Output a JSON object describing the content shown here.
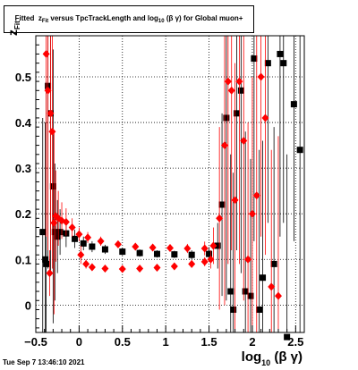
{
  "title": {
    "prefix": "Fitted",
    "z": "z",
    "z_sub": "Fit",
    "middle": "versus TpcTrackLength and log",
    "log_sub": "10",
    "beta_gamma": "(β γ)",
    "suffix": "for Global muon+"
  },
  "timestamp": "Tue Sep  7 13:46:10 2021",
  "axis": {
    "xlabel_main": "log",
    "xlabel_sub": "10",
    "xlabel_tail": "(β γ)",
    "ylabel_main": "z",
    "ylabel_sub": "Fit"
  },
  "colors": {
    "series_black": "#000000",
    "series_red": "#ff0000",
    "grid": "#000000"
  },
  "chart_data": {
    "type": "scatter",
    "xlim": [
      -0.5,
      2.6
    ],
    "ylim": [
      -0.06,
      0.59
    ],
    "xticks": [
      -0.5,
      0,
      0.5,
      1,
      1.5,
      2,
      2.5
    ],
    "xtick_labels": [
      "−0.5",
      "0",
      "0.5",
      "1",
      "1.5",
      "2",
      "2.5"
    ],
    "yticks": [
      0,
      0.1,
      0.2,
      0.3,
      0.4,
      0.5
    ],
    "ytick_labels": [
      "0",
      "0.1",
      "0.2",
      "0.3",
      "0.4",
      "0.5"
    ],
    "grid": true,
    "series": [
      {
        "color": "#000000",
        "points": [
          {
            "x": -0.42,
            "y": 0.16,
            "err": 0.25
          },
          {
            "x": -0.39,
            "y": 0.1,
            "err": 0.3
          },
          {
            "x": -0.38,
            "y": 0.09,
            "err": 0.4
          },
          {
            "x": -0.36,
            "y": 0.48,
            "err": 0.4
          },
          {
            "x": -0.33,
            "y": 0.42,
            "err": 0.35
          },
          {
            "x": -0.3,
            "y": 0.26,
            "err": 0.3
          },
          {
            "x": -0.28,
            "y": 0.16,
            "err": 0.15
          },
          {
            "x": -0.25,
            "y": 0.15,
            "err": 0.08
          },
          {
            "x": -0.22,
            "y": 0.16,
            "err": 0.05
          },
          {
            "x": -0.15,
            "y": 0.157,
            "err": 0.03
          },
          {
            "x": -0.05,
            "y": 0.145,
            "err": 0.02
          },
          {
            "x": 0.05,
            "y": 0.135,
            "err": 0.015
          },
          {
            "x": 0.15,
            "y": 0.128,
            "err": 0.012
          },
          {
            "x": 0.3,
            "y": 0.122,
            "err": 0.01
          },
          {
            "x": 0.5,
            "y": 0.117,
            "err": 0.008
          },
          {
            "x": 0.7,
            "y": 0.114,
            "err": 0.008
          },
          {
            "x": 0.9,
            "y": 0.112,
            "err": 0.008
          },
          {
            "x": 1.1,
            "y": 0.111,
            "err": 0.008
          },
          {
            "x": 1.3,
            "y": 0.11,
            "err": 0.01
          },
          {
            "x": 1.5,
            "y": 0.112,
            "err": 0.015
          },
          {
            "x": 1.6,
            "y": 0.13,
            "err": 0.05
          },
          {
            "x": 1.65,
            "y": 0.22,
            "err": 0.2
          },
          {
            "x": 1.7,
            "y": 0.41,
            "err": 0.4
          },
          {
            "x": 1.75,
            "y": 0.03,
            "err": 0.3
          },
          {
            "x": 1.78,
            "y": -0.01,
            "err": 0.3
          },
          {
            "x": 1.82,
            "y": 0.42,
            "err": 0.3
          },
          {
            "x": 1.87,
            "y": 0.47,
            "err": 0.4
          },
          {
            "x": 1.92,
            "y": 0.03,
            "err": 0.35
          },
          {
            "x": 1.98,
            "y": 0.02,
            "err": 0.3
          },
          {
            "x": 2.02,
            "y": 0.54,
            "err": 0.4
          },
          {
            "x": 2.08,
            "y": -0.01,
            "err": 0.35
          },
          {
            "x": 2.12,
            "y": 0.06,
            "err": 0.3
          },
          {
            "x": 2.18,
            "y": 0.53,
            "err": 0.35
          },
          {
            "x": 2.25,
            "y": 0.09,
            "err": 0.3
          },
          {
            "x": 2.32,
            "y": 0.55,
            "err": 0.4
          },
          {
            "x": 2.36,
            "y": 0.53,
            "err": 0.35
          },
          {
            "x": 2.4,
            "y": -0.07,
            "err": 0.4
          },
          {
            "x": 2.48,
            "y": 0.44,
            "err": 0.3
          },
          {
            "x": 2.55,
            "y": 0.34,
            "err": 0.4
          }
        ]
      },
      {
        "color": "#ff0000",
        "points": [
          {
            "x": -0.38,
            "y": 0.55,
            "err": 0.4
          },
          {
            "x": -0.36,
            "y": 0.47,
            "err": 0.35
          },
          {
            "x": -0.33,
            "y": 0.42,
            "err": 0.3
          },
          {
            "x": -0.31,
            "y": 0.38,
            "err": 0.3
          },
          {
            "x": -0.29,
            "y": 0.18,
            "err": 0.2
          },
          {
            "x": -0.27,
            "y": 0.195,
            "err": 0.1
          },
          {
            "x": -0.24,
            "y": 0.19,
            "err": 0.06
          },
          {
            "x": -0.2,
            "y": 0.185,
            "err": 0.04
          },
          {
            "x": -0.15,
            "y": 0.182,
            "err": 0.03
          },
          {
            "x": -0.08,
            "y": 0.17,
            "err": 0.02
          },
          {
            "x": 0.0,
            "y": 0.155,
            "err": 0.015
          },
          {
            "x": 0.1,
            "y": 0.148,
            "err": 0.012
          },
          {
            "x": 0.25,
            "y": 0.14,
            "err": 0.01
          },
          {
            "x": 0.45,
            "y": 0.133,
            "err": 0.008
          },
          {
            "x": 0.65,
            "y": 0.128,
            "err": 0.008
          },
          {
            "x": 0.85,
            "y": 0.126,
            "err": 0.008
          },
          {
            "x": 1.05,
            "y": 0.125,
            "err": 0.008
          },
          {
            "x": 1.25,
            "y": 0.124,
            "err": 0.01
          },
          {
            "x": 1.45,
            "y": 0.124,
            "err": 0.015
          },
          {
            "x": 1.55,
            "y": 0.13,
            "err": 0.04
          },
          {
            "x": 1.62,
            "y": 0.19,
            "err": 0.2
          },
          {
            "x": 1.68,
            "y": 0.35,
            "err": 0.35
          },
          {
            "x": 1.72,
            "y": 0.49,
            "err": 0.4
          },
          {
            "x": 1.76,
            "y": 0.47,
            "err": 0.35
          },
          {
            "x": 1.8,
            "y": 0.23,
            "err": 0.3
          },
          {
            "x": 1.85,
            "y": 0.49,
            "err": 0.4
          },
          {
            "x": 1.9,
            "y": 0.36,
            "err": 0.35
          },
          {
            "x": 1.95,
            "y": 0.1,
            "err": 0.3
          },
          {
            "x": 2.0,
            "y": 0.2,
            "err": 0.3
          },
          {
            "x": 2.05,
            "y": 0.24,
            "err": 0.35
          },
          {
            "x": 2.1,
            "y": 0.5,
            "err": 0.35
          },
          {
            "x": 2.15,
            "y": 0.41,
            "err": 0.3
          },
          {
            "x": 2.22,
            "y": 0.04,
            "err": 0.3
          },
          {
            "x": 2.3,
            "y": 0.02,
            "err": 0.35
          },
          {
            "x": -0.34,
            "y": 0.07,
            "err": 0.05
          },
          {
            "x": 0.02,
            "y": 0.11,
            "err": 0.02
          },
          {
            "x": 0.08,
            "y": 0.09,
            "err": 0.01
          },
          {
            "x": 0.15,
            "y": 0.083,
            "err": 0.008
          },
          {
            "x": 0.3,
            "y": 0.08,
            "err": 0.006
          },
          {
            "x": 0.5,
            "y": 0.079,
            "err": 0.006
          },
          {
            "x": 0.7,
            "y": 0.08,
            "err": 0.006
          },
          {
            "x": 0.9,
            "y": 0.082,
            "err": 0.006
          },
          {
            "x": 1.1,
            "y": 0.085,
            "err": 0.007
          },
          {
            "x": 1.3,
            "y": 0.09,
            "err": 0.008
          },
          {
            "x": 1.45,
            "y": 0.095,
            "err": 0.01
          },
          {
            "x": 1.52,
            "y": 0.1,
            "err": 0.02
          }
        ]
      }
    ]
  }
}
